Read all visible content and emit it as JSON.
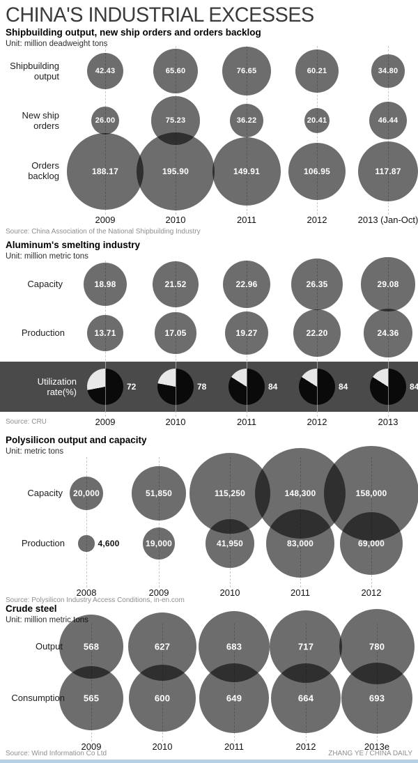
{
  "title": "CHINA'S INDUSTRIAL EXCESSES",
  "credit": "ZHANG YE / CHINA DAILY",
  "colors": {
    "bubble": "#6d6d6d",
    "band": "#4a4a4a",
    "pie_dark": "#0a0a0a",
    "pie_light": "#e8e8e8",
    "guide_line": "#c8c8c8",
    "value_text": "#ffffff",
    "bottom_bar": "#b8d0e4"
  },
  "chart_data": [
    {
      "type": "bubble",
      "title": "Shipbuilding output, new ship orders and orders backlog",
      "unit": "Unit: million deadweight tons",
      "source": "Source: China Association of the National Shipbuilding Industry",
      "categories": [
        "2009",
        "2010",
        "2011",
        "2012",
        "2013 (Jan-Oct)"
      ],
      "series": [
        {
          "name": "Shipbuilding output",
          "values": [
            42.43,
            65.6,
            76.65,
            60.21,
            34.8
          ],
          "labels": [
            "42.43",
            "65.60",
            "76.65",
            "60.21",
            "34.80"
          ]
        },
        {
          "name": "New ship orders",
          "values": [
            26.0,
            75.23,
            36.22,
            20.41,
            46.44
          ],
          "labels": [
            "26.00",
            "75.23",
            "36.22",
            "20.41",
            "46.44"
          ]
        },
        {
          "name": "Orders backlog",
          "values": [
            188.17,
            195.9,
            149.91,
            106.95,
            117.87
          ],
          "labels": [
            "188.17",
            "195.90",
            "149.91",
            "106.95",
            "117.87"
          ]
        }
      ]
    },
    {
      "type": "bubble",
      "title": "Aluminum's smelting industry",
      "unit": "Unit: million metric tons",
      "source": "Source: CRU",
      "categories": [
        "2009",
        "2010",
        "2011",
        "2012",
        "2013"
      ],
      "series": [
        {
          "name": "Capacity",
          "values": [
            18.98,
            21.52,
            22.96,
            26.35,
            29.08
          ],
          "labels": [
            "18.98",
            "21.52",
            "22.96",
            "26.35",
            "29.08"
          ]
        },
        {
          "name": "Production",
          "values": [
            13.71,
            17.05,
            19.27,
            22.2,
            24.36
          ],
          "labels": [
            "13.71",
            "17.05",
            "19.27",
            "22.20",
            "24.36"
          ]
        }
      ],
      "utilization": {
        "name": "Utilization rate(%)",
        "type": "pie",
        "values": [
          72,
          78,
          84,
          84,
          84
        ],
        "labels": [
          "72",
          "78",
          "84",
          "84",
          "84"
        ]
      }
    },
    {
      "type": "bubble",
      "title": "Polysilicon output and capacity",
      "unit": "Unit: metric tons",
      "source": "Source: Polysilicon Industry Access Conditions, in-en.com",
      "categories": [
        "2008",
        "2009",
        "2010",
        "2011",
        "2012"
      ],
      "series": [
        {
          "name": "Capacity",
          "values": [
            20000,
            51850,
            115250,
            148300,
            158000
          ],
          "labels": [
            "20,000",
            "51,850",
            "115,250",
            "148,300",
            "158,000"
          ]
        },
        {
          "name": "Production",
          "values": [
            4600,
            19000,
            41950,
            83000,
            69000
          ],
          "labels": [
            "4,600",
            "19,000",
            "41,950",
            "83,000",
            "69,000"
          ]
        }
      ]
    },
    {
      "type": "bubble",
      "title": "Crude steel",
      "unit": "Unit: million metric tons",
      "source": "Source: Wind Information Co Ltd",
      "categories": [
        "2009",
        "2010",
        "2011",
        "2012",
        "2013e"
      ],
      "series": [
        {
          "name": "Output",
          "values": [
            568,
            627,
            683,
            717,
            780
          ],
          "labels": [
            "568",
            "627",
            "683",
            "717",
            "780"
          ]
        },
        {
          "name": "Consumption",
          "values": [
            565,
            600,
            649,
            664,
            693
          ],
          "labels": [
            "565",
            "600",
            "649",
            "664",
            "693"
          ]
        }
      ]
    }
  ]
}
